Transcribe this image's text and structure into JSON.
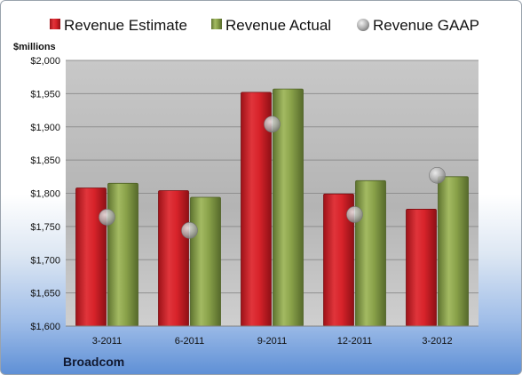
{
  "chart_data": {
    "type": "bar",
    "categories": [
      "3-2011",
      "6-2011",
      "9-2011",
      "12-2011",
      "3-2012"
    ],
    "series": [
      {
        "name": "Revenue Estimate",
        "kind": "bar",
        "values": [
          1808,
          1804,
          1952,
          1799,
          1776
        ],
        "color": "#d8232a"
      },
      {
        "name": "Revenue Actual",
        "kind": "bar",
        "values": [
          1815,
          1794,
          1957,
          1819,
          1825
        ],
        "color": "#8aa24a"
      },
      {
        "name": "Revenue GAAP",
        "kind": "marker",
        "values": [
          1764,
          1744,
          1904,
          1768,
          1827
        ],
        "color": "#a8a8a8"
      }
    ],
    "ylabel": "$millions",
    "ylim": [
      1600,
      2000
    ],
    "yticks": [
      "$1,600",
      "$1,650",
      "$1,700",
      "$1,750",
      "$1,800",
      "$1,850",
      "$1,900",
      "$1,950",
      "$2,000"
    ],
    "grid": true,
    "legend_position": "top"
  },
  "footer": {
    "company": "Broadcom"
  }
}
